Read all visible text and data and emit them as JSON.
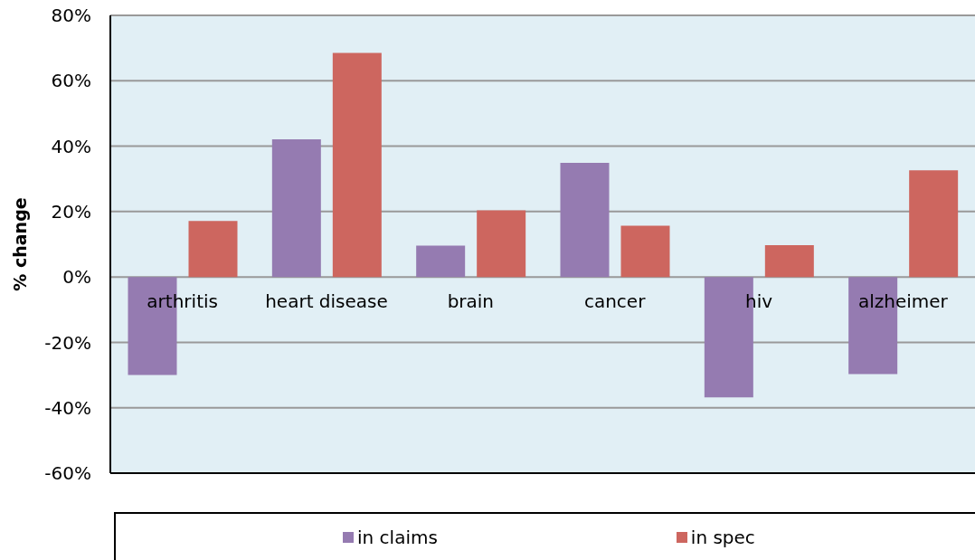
{
  "chart_data": {
    "type": "bar",
    "ylabel": "% change",
    "categories": [
      "arthritis",
      "heart disease",
      "brain",
      "cancer",
      "hiv",
      "alzheimer"
    ],
    "series": [
      {
        "name": "in claims",
        "color": "#957bb1",
        "values": [
          -30,
          42.1,
          9.6,
          34.9,
          -36.8,
          -29.7
        ]
      },
      {
        "name": "in spec",
        "color": "#cd665f",
        "values": [
          17.1,
          68.5,
          20.4,
          15.7,
          9.7,
          32.6
        ]
      }
    ],
    "ylim": [
      -60,
      80
    ],
    "yticks": [
      {
        "value": -60,
        "label": "-60%"
      },
      {
        "value": -40,
        "label": "-40%"
      },
      {
        "value": -20,
        "label": "-20%"
      },
      {
        "value": 0,
        "label": "0%"
      },
      {
        "value": 20,
        "label": "20%"
      },
      {
        "value": 40,
        "label": "40%"
      },
      {
        "value": 60,
        "label": "60%"
      },
      {
        "value": 80,
        "label": "80%"
      }
    ],
    "grid": "y",
    "legend": "bottom"
  }
}
